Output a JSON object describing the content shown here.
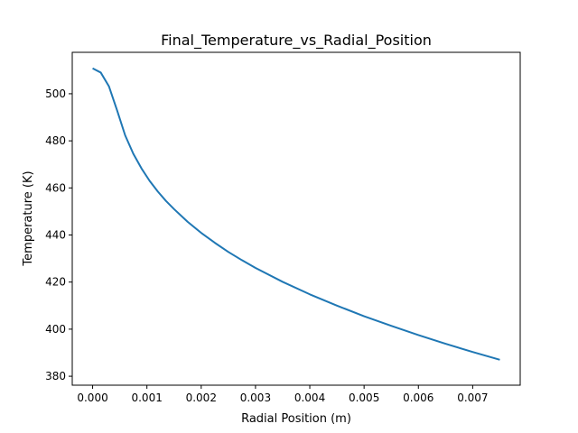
{
  "chart_data": {
    "type": "line",
    "title": "Final_Temperature_vs_Radial_Position",
    "xlabel": "Radial Position (m)",
    "ylabel": "Temperature (K)",
    "xlim": [
      -0.000375,
      0.007875
    ],
    "ylim": [
      376.2,
      517.6
    ],
    "grid": false,
    "xticks": [
      0.0,
      0.001,
      0.002,
      0.003,
      0.004,
      0.005,
      0.006,
      0.007
    ],
    "xtick_labels": [
      "0.000",
      "0.001",
      "0.002",
      "0.003",
      "0.004",
      "0.005",
      "0.006",
      "0.007"
    ],
    "yticks": [
      380,
      400,
      420,
      440,
      460,
      480,
      500
    ],
    "ytick_labels": [
      "380",
      "400",
      "420",
      "440",
      "460",
      "480",
      "500"
    ],
    "series": [
      {
        "color": "#1f77b4",
        "x": [
          0.0,
          0.00015,
          0.0003,
          0.00045,
          0.0006,
          0.00075,
          0.0009,
          0.00105,
          0.0012,
          0.00135,
          0.0015,
          0.00175,
          0.002,
          0.00225,
          0.0025,
          0.00275,
          0.003,
          0.0035,
          0.004,
          0.0045,
          0.005,
          0.0055,
          0.006,
          0.0065,
          0.007,
          0.0075
        ],
        "y": [
          510.8,
          509.0,
          503.2,
          493.0,
          482.3,
          474.5,
          468.3,
          463.0,
          458.5,
          454.5,
          451.0,
          445.6,
          440.9,
          436.7,
          432.8,
          429.3,
          426.0,
          420.1,
          414.8,
          410.0,
          405.5,
          401.4,
          397.5,
          393.8,
          390.3,
          387.0
        ]
      }
    ]
  }
}
